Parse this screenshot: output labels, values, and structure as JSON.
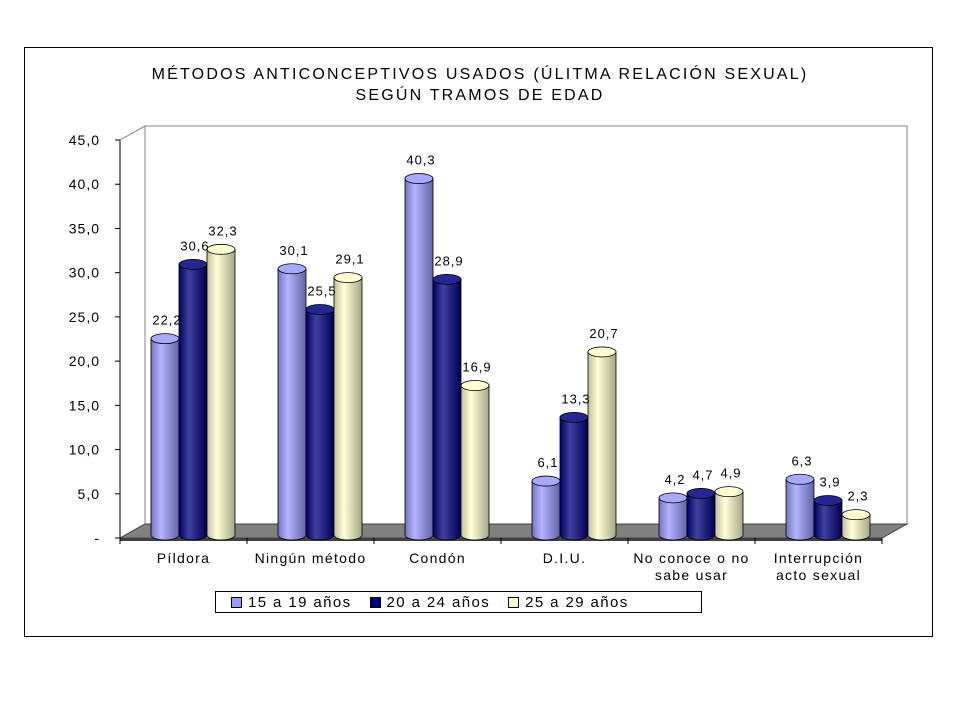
{
  "chart_data": {
    "type": "bar",
    "title": "MÉTODOS ANTICONCEPTIVOS USADOS (ÚLITMA RELACIÓN SEXUAL)",
    "subtitle": "SEGÚN TRAMOS DE EDAD",
    "categories": [
      [
        "Píldora"
      ],
      [
        "Ningún método"
      ],
      [
        "Condón"
      ],
      [
        "D.I.U."
      ],
      [
        "No conoce o no",
        "sabe usar"
      ],
      [
        "Interrupción",
        "acto sexual"
      ]
    ],
    "series": [
      {
        "name": "15 a 19 años",
        "color": "#9999ff",
        "values": [
          22.2,
          30.1,
          40.3,
          6.1,
          4.2,
          6.3
        ],
        "labels": [
          "22,2",
          "30,1",
          "40,3",
          "6,1",
          "4,2",
          "6,3"
        ]
      },
      {
        "name": "20 a 24 años",
        "color": "#000080",
        "values": [
          30.6,
          25.5,
          28.9,
          13.3,
          4.7,
          3.9
        ],
        "labels": [
          "30,6",
          "25,5",
          "28,9",
          "13,3",
          "4,7",
          "3,9"
        ]
      },
      {
        "name": "25 a 29 años",
        "color": "#ffffcc",
        "values": [
          32.3,
          29.1,
          16.9,
          20.7,
          4.9,
          2.3
        ],
        "labels": [
          "32,3",
          "29,1",
          "16,9",
          "20,7",
          "4,9",
          "2,3"
        ]
      }
    ],
    "y_ticks": [
      {
        "value": 0,
        "label": "-"
      },
      {
        "value": 5,
        "label": "5,0"
      },
      {
        "value": 10,
        "label": "10,0"
      },
      {
        "value": 15,
        "label": "15,0"
      },
      {
        "value": 20,
        "label": "20,0"
      },
      {
        "value": 25,
        "label": "25,0"
      },
      {
        "value": 30,
        "label": "30,0"
      },
      {
        "value": 35,
        "label": "35,0"
      },
      {
        "value": 40,
        "label": "40,0"
      },
      {
        "value": 45,
        "label": "45,0"
      }
    ],
    "ylim": [
      0,
      45
    ],
    "style": "3d-cylinder",
    "legend_position": "bottom",
    "grid": false
  }
}
